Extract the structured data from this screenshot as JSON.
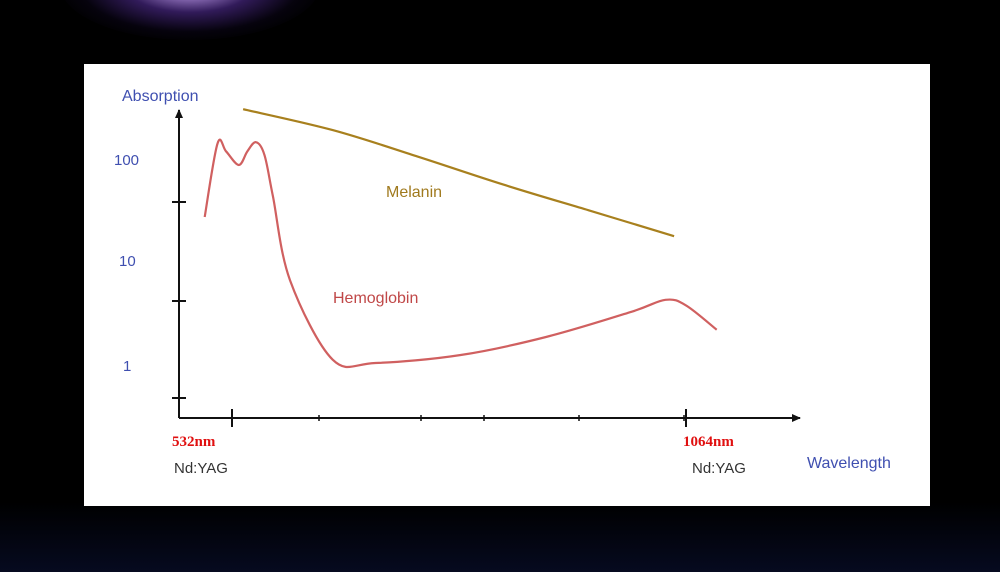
{
  "chart_data": {
    "type": "line",
    "ylabel": "Absorption",
    "xlabel": "Wavelength",
    "y_scale": "log",
    "y_ticks": [
      "100",
      "10",
      "1"
    ],
    "x_ticks": [
      {
        "label": "532nm",
        "sublabel": "Nd:YAG"
      },
      {
        "label": "1064nm",
        "sublabel": "Nd:YAG"
      }
    ],
    "grid": false,
    "series": [
      {
        "name": "Melanin",
        "color": "#a8801e",
        "x": [
          545,
          650,
          750,
          850,
          950,
          1050
        ],
        "y": [
          340,
          215,
          120,
          65,
          37,
          21
        ]
      },
      {
        "name": "Hemoglobin",
        "color": "#d06060",
        "x": [
          500,
          515,
          525,
          540,
          550,
          560,
          570,
          580,
          600,
          650,
          700,
          800,
          900,
          1000,
          1040,
          1064,
          1100
        ],
        "y": [
          32,
          160,
          135,
          100,
          135,
          165,
          125,
          50,
          8,
          1.4,
          1.3,
          1.55,
          2.3,
          4.0,
          5.2,
          4.6,
          2.7
        ]
      }
    ]
  }
}
